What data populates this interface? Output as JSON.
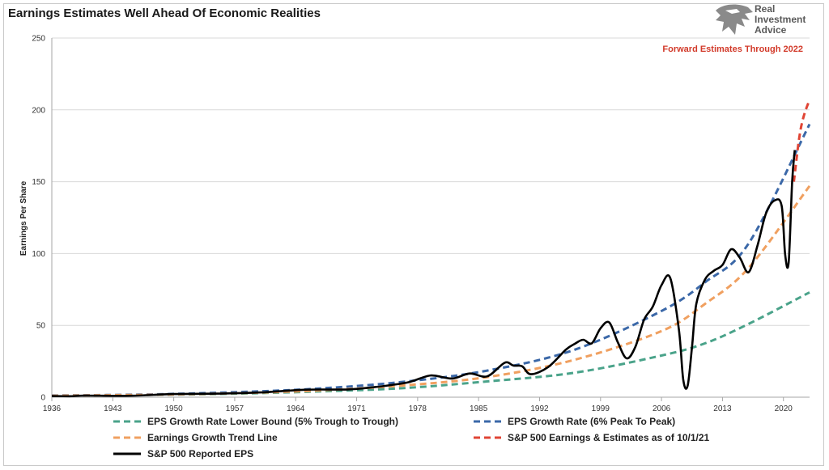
{
  "title": "Earnings Estimates Well Ahead Of Economic Realities",
  "brand": {
    "lines": [
      "Real",
      "Investment",
      "Advice"
    ],
    "icon": "eagle-head-logo-icon"
  },
  "chart_data": {
    "type": "line",
    "title": "Earnings Estimates Well Ahead Of Economic Realities",
    "xlabel": "",
    "ylabel": "Earnings Per Share",
    "xlim": [
      1936,
      2023
    ],
    "ylim": [
      0,
      250
    ],
    "x_ticks": [
      "1936",
      "1943",
      "1950",
      "1957",
      "1964",
      "1971",
      "1978",
      "1985",
      "1992",
      "1999",
      "2006",
      "2013",
      "2020"
    ],
    "y_ticks": [
      "0",
      "50",
      "100",
      "150",
      "200",
      "250"
    ],
    "grid": "horizontal",
    "annotation": "Forward Estimates Through 2022",
    "legend_position": "bottom",
    "series": [
      {
        "name": "EPS Growth Rate Lower Bound (5% Trough to Trough)",
        "color": "#4aa38a",
        "style": "dashed",
        "points": [
          [
            1936,
            1.0
          ],
          [
            1946,
            1.6
          ],
          [
            1956,
            2.3
          ],
          [
            1966,
            3.9
          ],
          [
            1976,
            6.2
          ],
          [
            1986,
            11.0
          ],
          [
            1996,
            17.0
          ],
          [
            2006,
            29.0
          ],
          [
            2011,
            37.5
          ],
          [
            2016,
            51.0
          ],
          [
            2023,
            73.0
          ]
        ]
      },
      {
        "name": "EPS Growth Rate (6% Peak To Peak)",
        "color": "#3b68a8",
        "style": "dashed",
        "points": [
          [
            1936,
            1.2
          ],
          [
            1946,
            1.8
          ],
          [
            1956,
            3.3
          ],
          [
            1966,
            5.8
          ],
          [
            1976,
            10.5
          ],
          [
            1986,
            18.5
          ],
          [
            1996,
            33.0
          ],
          [
            2006,
            60.0
          ],
          [
            2011,
            80.0
          ],
          [
            2016,
            107.0
          ],
          [
            2023,
            190.0
          ]
        ]
      },
      {
        "name": "Earnings Growth Trend Line",
        "color": "#f0a060",
        "style": "dashed",
        "points": [
          [
            1936,
            1.0
          ],
          [
            1946,
            1.6
          ],
          [
            1956,
            2.6
          ],
          [
            1966,
            4.5
          ],
          [
            1976,
            8.0
          ],
          [
            1986,
            14.0
          ],
          [
            1996,
            26.0
          ],
          [
            2006,
            46.0
          ],
          [
            2011,
            65.0
          ],
          [
            2016,
            90.0
          ],
          [
            2023,
            147.0
          ]
        ]
      },
      {
        "name": "S&P 500 Earnings & Estimates as of 10/1/21",
        "color": "#e04535",
        "style": "dashed",
        "points": [
          [
            2021.2,
            150.0
          ],
          [
            2021.8,
            180.0
          ],
          [
            2022.3,
            195.0
          ],
          [
            2023,
            207.0
          ]
        ]
      },
      {
        "name": "S&P 500 Reported EPS",
        "color": "#000000",
        "style": "solid",
        "points": [
          [
            1936,
            0.8
          ],
          [
            1938,
            0.7
          ],
          [
            1940,
            1.1
          ],
          [
            1945,
            1.0
          ],
          [
            1950,
            2.2
          ],
          [
            1955,
            2.5
          ],
          [
            1960,
            3.3
          ],
          [
            1965,
            5.2
          ],
          [
            1970,
            5.4
          ],
          [
            1973,
            7.0
          ],
          [
            1975,
            8.5
          ],
          [
            1977,
            10.5
          ],
          [
            1979,
            14.5
          ],
          [
            1980,
            15.0
          ],
          [
            1982,
            13.0
          ],
          [
            1984,
            16.5
          ],
          [
            1986,
            14.5
          ],
          [
            1988,
            24.0
          ],
          [
            1989,
            22.0
          ],
          [
            1990,
            21.5
          ],
          [
            1991,
            16.0
          ],
          [
            1993,
            21.0
          ],
          [
            1995,
            33.0
          ],
          [
            1996,
            37.0
          ],
          [
            1997,
            40.0
          ],
          [
            1998,
            37.5
          ],
          [
            1999,
            48.0
          ],
          [
            2000,
            52.0
          ],
          [
            2001,
            38.0
          ],
          [
            2002,
            27.0
          ],
          [
            2003,
            35.0
          ],
          [
            2004,
            54.0
          ],
          [
            2005,
            63.0
          ],
          [
            2006,
            78.0
          ],
          [
            2007,
            83.0
          ],
          [
            2008,
            47.0
          ],
          [
            2008.5,
            12.0
          ],
          [
            2009,
            8.0
          ],
          [
            2009.5,
            35.0
          ],
          [
            2010,
            65.0
          ],
          [
            2011,
            82.0
          ],
          [
            2012,
            88.0
          ],
          [
            2013,
            92.0
          ],
          [
            2014,
            103.0
          ],
          [
            2015,
            97.0
          ],
          [
            2016,
            87.0
          ],
          [
            2017,
            105.0
          ],
          [
            2018,
            128.0
          ],
          [
            2019,
            137.0
          ],
          [
            2019.8,
            133.0
          ],
          [
            2020.2,
            99.0
          ],
          [
            2020.6,
            94.0
          ],
          [
            2021,
            150.0
          ],
          [
            2021.3,
            172.0
          ]
        ]
      }
    ]
  },
  "legend": [
    {
      "label": "EPS Growth Rate Lower Bound (5% Trough to Trough)",
      "color": "#4aa38a",
      "style": "dashed"
    },
    {
      "label": "EPS Growth Rate (6% Peak To Peak)",
      "color": "#3b68a8",
      "style": "dashed"
    },
    {
      "label": "Earnings Growth Trend Line",
      "color": "#f0a060",
      "style": "dashed"
    },
    {
      "label": "S&P 500 Earnings & Estimates as of 10/1/21",
      "color": "#e04535",
      "style": "dashed"
    },
    {
      "label": "S&P 500 Reported EPS",
      "color": "#000000",
      "style": "solid"
    }
  ]
}
